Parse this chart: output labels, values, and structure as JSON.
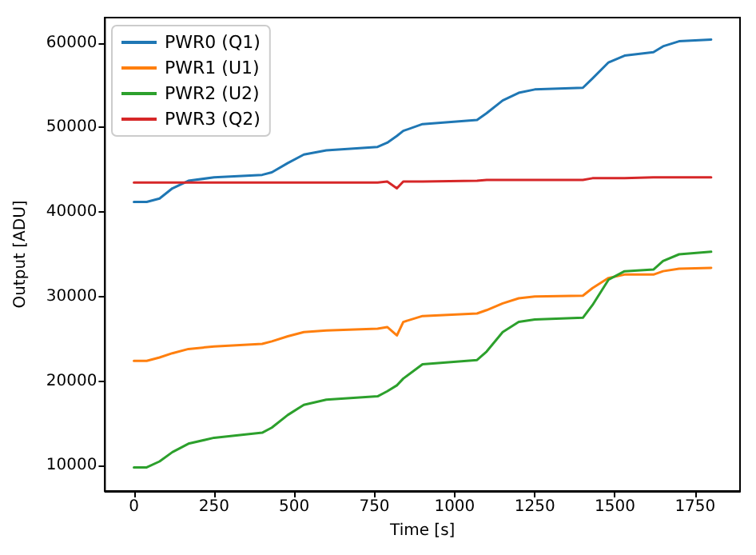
{
  "chart_data": {
    "type": "line",
    "xlabel": "Time [s]",
    "ylabel": "Output [ADU]",
    "x": [
      0,
      40,
      80,
      120,
      170,
      250,
      400,
      430,
      480,
      530,
      600,
      760,
      790,
      820,
      840,
      900,
      1070,
      1100,
      1150,
      1200,
      1250,
      1400,
      1430,
      1480,
      1530,
      1620,
      1650,
      1700,
      1800
    ],
    "series": [
      {
        "name": "PWR0 (Q1)",
        "color": "#1f77b4",
        "values": [
          41200,
          41200,
          41600,
          42800,
          43700,
          44100,
          44400,
          44700,
          45800,
          46800,
          47300,
          47700,
          48200,
          49000,
          49600,
          50400,
          50900,
          51700,
          53200,
          54100,
          54500,
          54700,
          55800,
          57700,
          58500,
          58900,
          59600,
          60200,
          60400
        ]
      },
      {
        "name": "PWR1 (U1)",
        "color": "#ff7f0e",
        "values": [
          22400,
          22400,
          22800,
          23300,
          23800,
          24100,
          24400,
          24700,
          25300,
          25800,
          26000,
          26200,
          26400,
          25400,
          27000,
          27700,
          28000,
          28400,
          29200,
          29800,
          30000,
          30100,
          31000,
          32200,
          32600,
          32600,
          33000,
          33300,
          33400
        ]
      },
      {
        "name": "PWR2 (U2)",
        "color": "#2ca02c",
        "values": [
          9800,
          9800,
          10500,
          11600,
          12600,
          13300,
          13900,
          14500,
          16000,
          17200,
          17800,
          18200,
          18800,
          19500,
          20300,
          22000,
          22500,
          23500,
          25800,
          27000,
          27300,
          27500,
          29000,
          32000,
          33000,
          33200,
          34200,
          35000,
          35300
        ]
      },
      {
        "name": "PWR3 (Q2)",
        "color": "#d62728",
        "values": [
          43500,
          43500,
          43500,
          43500,
          43500,
          43500,
          43500,
          43500,
          43500,
          43500,
          43500,
          43500,
          43600,
          42800,
          43600,
          43600,
          43700,
          43800,
          43800,
          43800,
          43800,
          43800,
          44000,
          44000,
          44000,
          44100,
          44100,
          44100,
          44100
        ]
      }
    ],
    "xlim": [
      -90,
      1890
    ],
    "xticks": [
      0,
      250,
      500,
      750,
      1000,
      1250,
      1500,
      1750
    ],
    "ylim": [
      7000,
      63000
    ],
    "yticks": [
      10000,
      20000,
      30000,
      40000,
      50000,
      60000
    ],
    "legend": "top left",
    "grid": false,
    "marker": "none",
    "line_style": "solid"
  }
}
